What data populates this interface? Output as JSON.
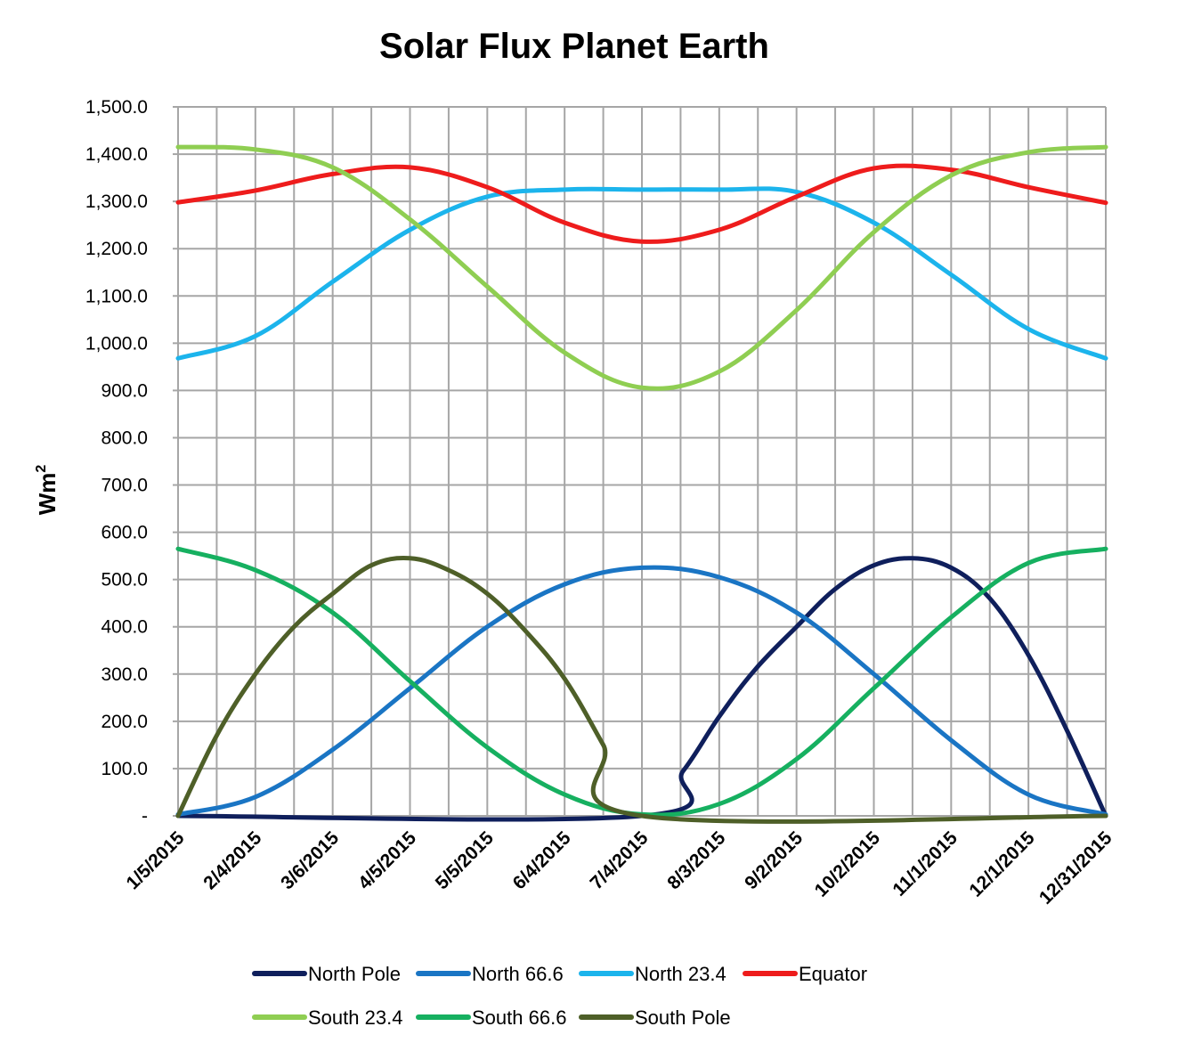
{
  "chart_data": {
    "type": "line",
    "title": "Solar Flux Planet Earth",
    "ylabel": "Wm",
    "ylabel_sup": "2",
    "xlabel": "",
    "ylim": [
      0,
      1500
    ],
    "y_ticks": [
      {
        "value": 0,
        "label": "-"
      },
      {
        "value": 100,
        "label": "100.0"
      },
      {
        "value": 200,
        "label": "200.0"
      },
      {
        "value": 300,
        "label": "300.0"
      },
      {
        "value": 400,
        "label": "400.0"
      },
      {
        "value": 500,
        "label": "500.0"
      },
      {
        "value": 600,
        "label": "600.0"
      },
      {
        "value": 700,
        "label": "700.0"
      },
      {
        "value": 800,
        "label": "800.0"
      },
      {
        "value": 900,
        "label": "900.0"
      },
      {
        "value": 1000,
        "label": "1,000.0"
      },
      {
        "value": 1100,
        "label": "1,100.0"
      },
      {
        "value": 1200,
        "label": "1,200.0"
      },
      {
        "value": 1300,
        "label": "1,300.0"
      },
      {
        "value": 1400,
        "label": "1,400.0"
      },
      {
        "value": 1500,
        "label": "1,500.0"
      }
    ],
    "x_range": [
      "1/5/2015",
      "12/31/2015"
    ],
    "x_tick_labels": [
      "1/5/2015",
      "2/4/2015",
      "3/6/2015",
      "4/5/2015",
      "5/5/2015",
      "6/4/2015",
      "7/4/2015",
      "8/3/2015",
      "9/2/2015",
      "10/2/2015",
      "11/1/2015",
      "12/1/2015",
      "12/31/2015"
    ],
    "grid": true,
    "legend_position": "bottom",
    "series": [
      {
        "name": "North Pole",
        "color": "#0f1f5c",
        "x": [
          "1/5/2015",
          "7/4/2015",
          "7/20/2015",
          "8/3/2015",
          "8/17/2015",
          "9/2/2015",
          "9/17/2015",
          "10/2/2015",
          "10/17/2015",
          "11/1/2015",
          "11/16/2015",
          "12/1/2015",
          "12/16/2015",
          "12/31/2015"
        ],
        "y": [
          0,
          0,
          95,
          210,
          310,
          400,
          480,
          530,
          545,
          525,
          460,
          340,
          180,
          0
        ]
      },
      {
        "name": "North 66.6",
        "color": "#1a75c4",
        "x": [
          "1/5/2015",
          "2/4/2015",
          "3/6/2015",
          "4/5/2015",
          "5/5/2015",
          "6/4/2015",
          "7/4/2015",
          "8/3/2015",
          "9/2/2015",
          "10/2/2015",
          "11/1/2015",
          "12/1/2015",
          "12/31/2015"
        ],
        "y": [
          3,
          40,
          140,
          270,
          400,
          490,
          525,
          505,
          430,
          300,
          160,
          45,
          3
        ]
      },
      {
        "name": "North 23.4",
        "color": "#1cb4ec",
        "x": [
          "1/5/2015",
          "2/4/2015",
          "3/6/2015",
          "4/5/2015",
          "5/5/2015",
          "6/4/2015",
          "7/4/2015",
          "8/3/2015",
          "9/2/2015",
          "10/2/2015",
          "11/1/2015",
          "12/1/2015",
          "12/31/2015"
        ],
        "y": [
          968,
          1015,
          1130,
          1240,
          1310,
          1325,
          1325,
          1325,
          1320,
          1255,
          1145,
          1030,
          968
        ]
      },
      {
        "name": "Equator",
        "color": "#ee1c1c",
        "x": [
          "1/5/2015",
          "2/4/2015",
          "3/6/2015",
          "4/5/2015",
          "5/5/2015",
          "6/4/2015",
          "7/4/2015",
          "8/3/2015",
          "9/2/2015",
          "10/2/2015",
          "11/1/2015",
          "12/1/2015",
          "12/31/2015"
        ],
        "y": [
          1298,
          1323,
          1358,
          1372,
          1330,
          1255,
          1215,
          1240,
          1310,
          1370,
          1367,
          1330,
          1297
        ]
      },
      {
        "name": "South 23.4",
        "color": "#8fce52",
        "x": [
          "1/5/2015",
          "2/4/2015",
          "3/6/2015",
          "4/5/2015",
          "5/5/2015",
          "6/4/2015",
          "7/4/2015",
          "8/3/2015",
          "9/2/2015",
          "10/2/2015",
          "11/1/2015",
          "12/1/2015",
          "12/31/2015"
        ],
        "y": [
          1415,
          1410,
          1372,
          1262,
          1120,
          980,
          906,
          940,
          1070,
          1235,
          1355,
          1404,
          1415
        ]
      },
      {
        "name": "South 66.6",
        "color": "#16b060",
        "x": [
          "1/5/2015",
          "2/4/2015",
          "3/6/2015",
          "4/5/2015",
          "5/5/2015",
          "6/4/2015",
          "7/4/2015",
          "8/3/2015",
          "9/2/2015",
          "10/2/2015",
          "11/1/2015",
          "12/1/2015",
          "12/31/2015"
        ],
        "y": [
          565,
          520,
          430,
          285,
          145,
          45,
          3,
          25,
          120,
          270,
          420,
          535,
          565
        ]
      },
      {
        "name": "South Pole",
        "color": "#4e5f28",
        "x": [
          "1/5/2015",
          "1/20/2015",
          "2/4/2015",
          "2/19/2015",
          "3/6/2015",
          "3/21/2015",
          "4/5/2015",
          "4/20/2015",
          "5/5/2015",
          "5/20/2015",
          "6/4/2015",
          "6/19/2015",
          "7/4/2015",
          "12/31/2015"
        ],
        "y": [
          0,
          170,
          300,
          400,
          470,
          530,
          545,
          520,
          470,
          390,
          290,
          150,
          0,
          0
        ]
      }
    ]
  }
}
